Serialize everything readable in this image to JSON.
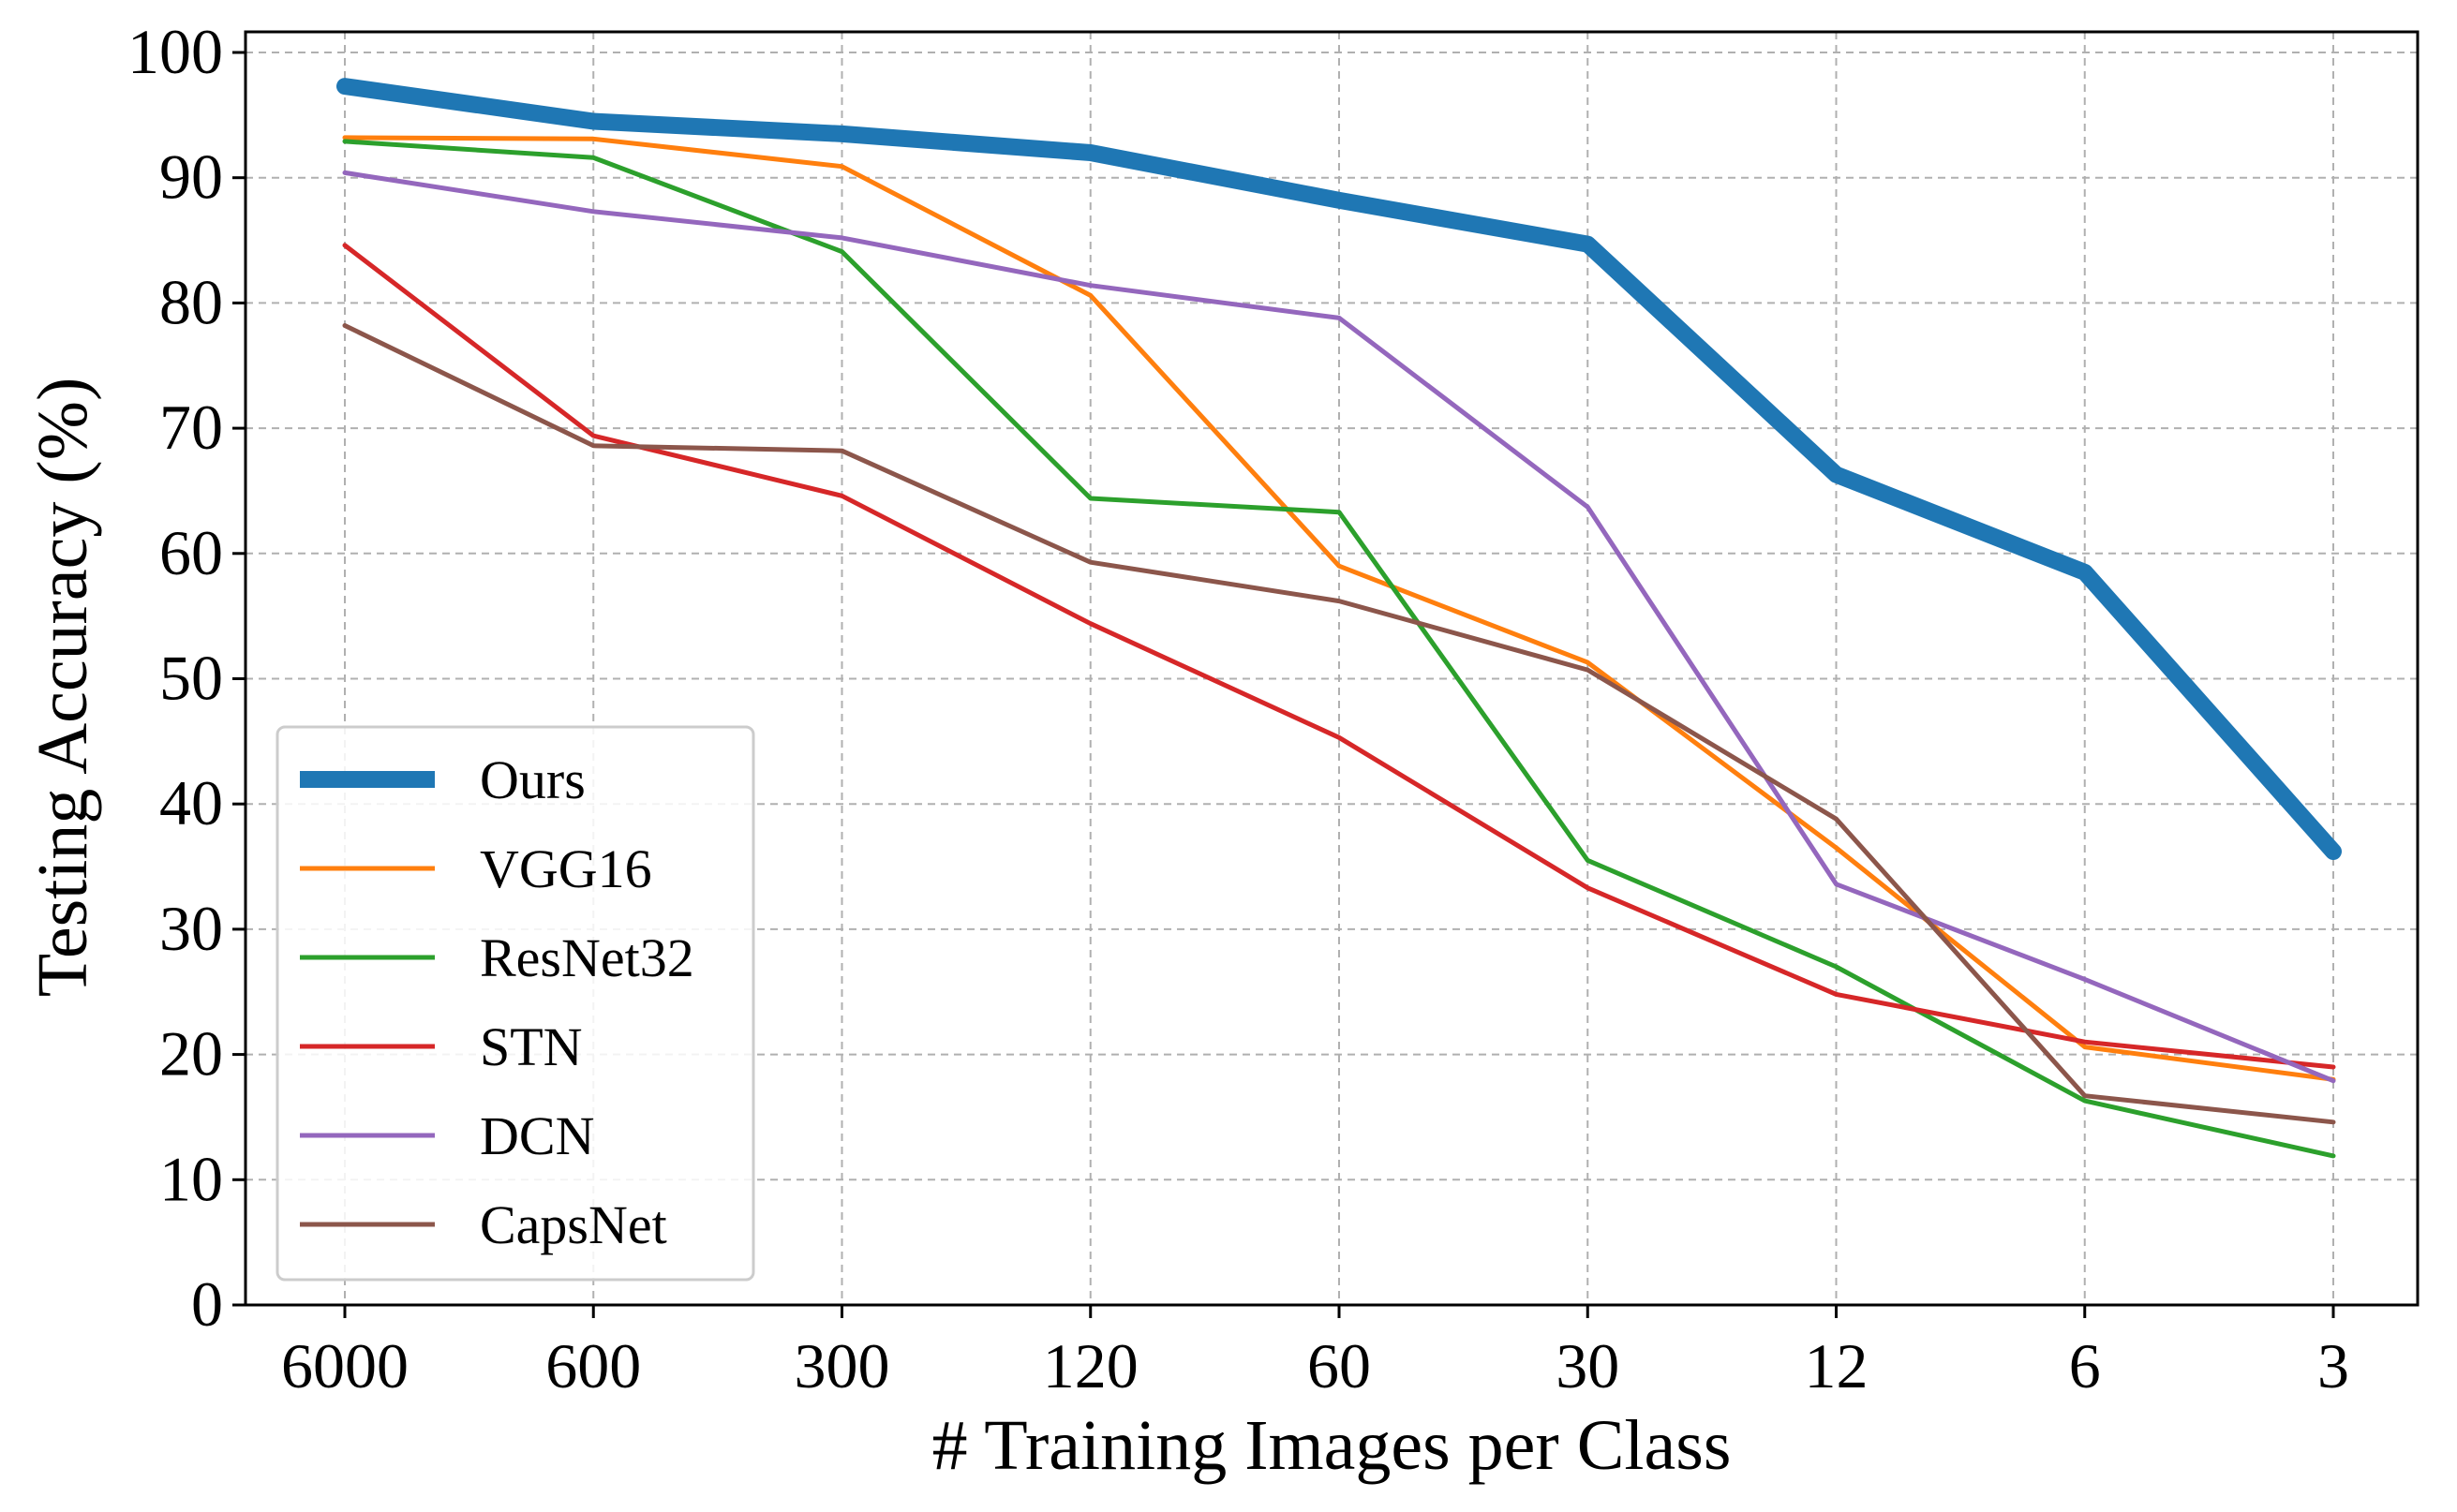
{
  "chart_data": {
    "type": "line",
    "title": "",
    "xlabel": "# Training Images per Class",
    "ylabel": "Testing Accuracy (%)",
    "categories": [
      "6000",
      "600",
      "300",
      "120",
      "60",
      "30",
      "12",
      "6",
      "3"
    ],
    "ylim": [
      0,
      100
    ],
    "yticks": [
      "0",
      "10",
      "20",
      "30",
      "40",
      "50",
      "60",
      "70",
      "80",
      "90",
      "100"
    ],
    "grid": true,
    "legend_position": "lower-left",
    "series": [
      {
        "name": "Ours",
        "color": "#1f77b4",
        "emphasis": true,
        "values": [
          97.3,
          94.5,
          93.5,
          92.0,
          88.2,
          84.7,
          66.3,
          58.5,
          36.2
        ]
      },
      {
        "name": "VGG16",
        "color": "#ff7f0e",
        "values": [
          93.2,
          93.1,
          90.9,
          80.6,
          59.0,
          51.3,
          36.5,
          20.6,
          18.0
        ]
      },
      {
        "name": "ResNet32",
        "color": "#2ca02c",
        "values": [
          92.9,
          91.6,
          84.1,
          64.4,
          63.3,
          35.5,
          27.0,
          16.3,
          11.9
        ]
      },
      {
        "name": "STN",
        "color": "#d62728",
        "values": [
          84.6,
          69.4,
          64.6,
          54.4,
          45.3,
          33.3,
          24.8,
          21.0,
          19.0
        ]
      },
      {
        "name": "DCN",
        "color": "#9467bd",
        "values": [
          90.4,
          87.3,
          85.2,
          81.4,
          78.8,
          63.7,
          33.6,
          26.0,
          17.9
        ]
      },
      {
        "name": "CapsNet",
        "color": "#8c564b",
        "values": [
          78.2,
          68.6,
          68.2,
          59.3,
          56.2,
          50.7,
          38.8,
          16.7,
          14.6
        ]
      }
    ]
  }
}
